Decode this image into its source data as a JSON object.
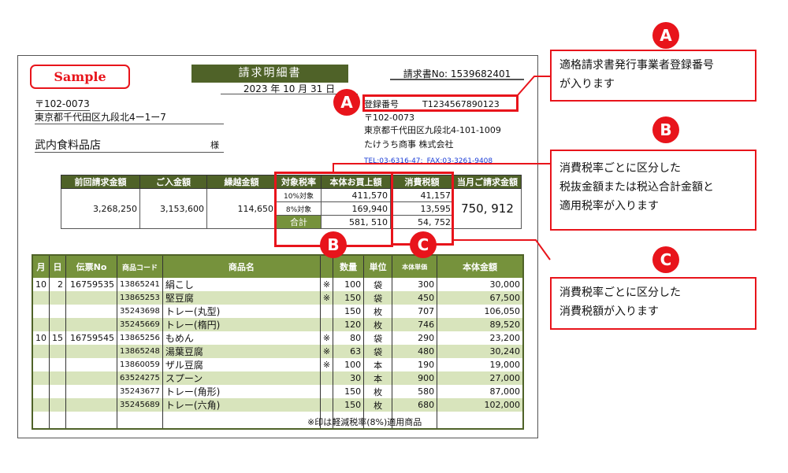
{
  "colors": {
    "header_dark": "#4f6228",
    "header": "#76923c",
    "row_alt": "#d8e4bc",
    "accent": "#e8141b"
  },
  "sample": "Sample",
  "title": "請求明細書",
  "date": "2023 年 10 月 31 日",
  "invoice_no": "請求書No:  1539682401",
  "customer": {
    "zip": "〒102-0073",
    "address": "東京都千代田区九段北4ー1ー7",
    "name": "武内食料品店",
    "honorific": "様"
  },
  "issuer": {
    "reg_label": "登録番号",
    "reg_no": "T1234567890123",
    "zip": "〒102-0073",
    "address": "東京都千代田区九段北4-101-1009",
    "company": "たけうち商事  株式会社",
    "tel": "TEL:03-6316-47:",
    "fax": "FAX:03-3261-9408"
  },
  "summary": {
    "headers": [
      "前回請求金額",
      "ご入金額",
      "繰越金額",
      "対象税率",
      "本体お買上額",
      "消費税額",
      "当月ご請求金額"
    ],
    "previous": "3,268,250",
    "paid": "3,153,600",
    "carryover": "114,650",
    "rows": [
      {
        "rate": "10%対象",
        "amount": "411,570",
        "tax": "41,157"
      },
      {
        "rate": "8%対象",
        "amount": "169,940",
        "tax": "13,595"
      },
      {
        "rate": "合計",
        "amount": "581, 510",
        "tax": "54, 752"
      }
    ],
    "total": "750, 912"
  },
  "details": {
    "headers": [
      "月",
      "日",
      "伝票No",
      "商品コード",
      "商品名",
      "",
      "数量",
      "単位",
      "本体単価",
      "本体金額"
    ],
    "rows": [
      [
        "10",
        "2",
        "16759535",
        "13865241",
        "絹こし",
        "※",
        "100",
        "袋",
        "300",
        "30,000"
      ],
      [
        "",
        "",
        "",
        "13865253",
        "堅豆腐",
        "※",
        "150",
        "袋",
        "450",
        "67,500"
      ],
      [
        "",
        "",
        "",
        "35243698",
        "トレー(丸型)",
        "",
        "150",
        "枚",
        "707",
        "106,050"
      ],
      [
        "",
        "",
        "",
        "35245669",
        "トレー(楕円)",
        "",
        "120",
        "枚",
        "746",
        "89,520"
      ],
      [
        "10",
        "15",
        "16759545",
        "13865256",
        "もめん",
        "※",
        "80",
        "袋",
        "290",
        "23,200"
      ],
      [
        "",
        "",
        "",
        "13865248",
        "湯葉豆腐",
        "※",
        "63",
        "袋",
        "480",
        "30,240"
      ],
      [
        "",
        "",
        "",
        "13860059",
        "ザル豆腐",
        "※",
        "100",
        "本",
        "190",
        "19,000"
      ],
      [
        "",
        "",
        "",
        "63524275",
        "スプーン",
        "",
        "30",
        "本",
        "900",
        "27,000"
      ],
      [
        "",
        "",
        "",
        "35243677",
        "トレー(角形)",
        "",
        "150",
        "枚",
        "580",
        "87,000"
      ],
      [
        "",
        "",
        "",
        "35245689",
        "トレー(六角)",
        "",
        "150",
        "枚",
        "680",
        "102,000"
      ]
    ],
    "note": "※印は軽減税率(8%)適用商品"
  },
  "callouts": {
    "A": {
      "label": "A",
      "text": [
        "適格請求書発行事業者登録番号",
        "が入ります"
      ]
    },
    "B": {
      "label": "B",
      "text": [
        "消費税率ごとに区分した",
        "税抜金額または税込合計金額と",
        "適用税率が入ります"
      ]
    },
    "C": {
      "label": "C",
      "text": [
        "消費税率ごとに区分した",
        "消費税額が入ります"
      ]
    }
  }
}
